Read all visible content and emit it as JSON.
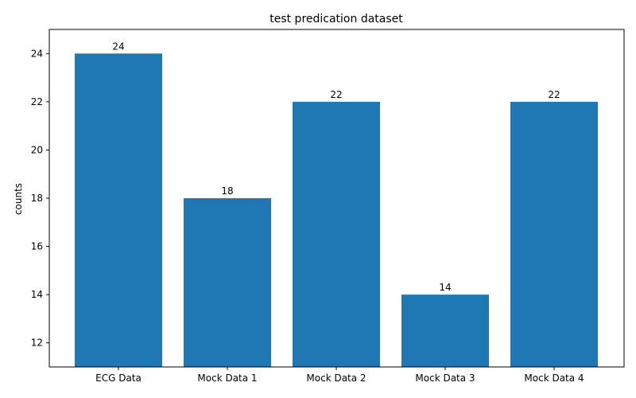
{
  "chart_data": {
    "type": "bar",
    "title": "test predication dataset",
    "xlabel": "",
    "ylabel": "counts",
    "categories": [
      "ECG Data",
      "Mock Data 1",
      "Mock Data 2",
      "Mock Data 3",
      "Mock Data 4"
    ],
    "values": [
      24,
      18,
      22,
      14,
      22
    ],
    "ylim": [
      11,
      25
    ],
    "yticks": [
      12,
      14,
      16,
      18,
      20,
      22,
      24
    ],
    "grid": false,
    "bar_color": "#1f77b4"
  }
}
